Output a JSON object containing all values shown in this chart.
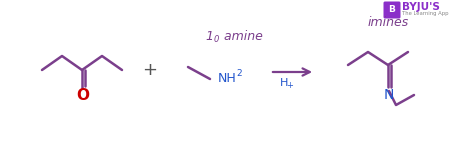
{
  "bg_color": "#ffffff",
  "molecule_color": "#7B3F8C",
  "oxygen_color": "#CC0000",
  "nitrogen_color": "#2255CC",
  "arrow_color": "#7B3F8C",
  "label_color": "#7B3F8C",
  "h_plus_color": "#2255CC",
  "plus_color": "#555555",
  "byju_bg": "#8B2FC9",
  "label_1o_amine": "1",
  "label_1o_sup": "0",
  "label_amine": " amine",
  "label_imines": "imines",
  "label_h_plus": "H",
  "label_h_plus_sup": "+",
  "byju_text": "BYJU'S",
  "byju_sub": "The Learning App"
}
